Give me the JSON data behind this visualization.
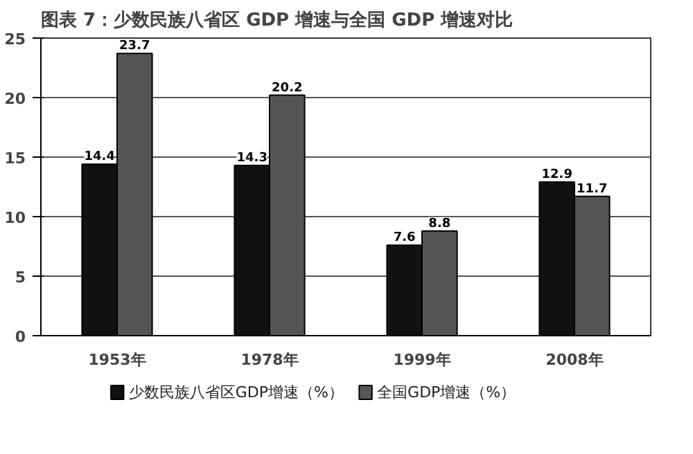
{
  "chart_data": {
    "type": "bar",
    "title": "图表 7：少数民族八省区 GDP 增速与全国 GDP 增速对比",
    "categories": [
      "1953年",
      "1978年",
      "1999年",
      "2008年"
    ],
    "series": [
      {
        "name": "少数民族八省区GDP增速（%）",
        "color": "#111111",
        "values": [
          14.4,
          14.3,
          7.6,
          12.9
        ]
      },
      {
        "name": "全国GDP增速（%）",
        "color": "#555555",
        "values": [
          23.7,
          20.2,
          8.8,
          11.7
        ]
      }
    ],
    "ylim": [
      0,
      25
    ],
    "yticks": [
      0,
      5,
      10,
      15,
      20,
      25
    ],
    "grid": "y",
    "legend": "bottom",
    "data_labels": true
  }
}
